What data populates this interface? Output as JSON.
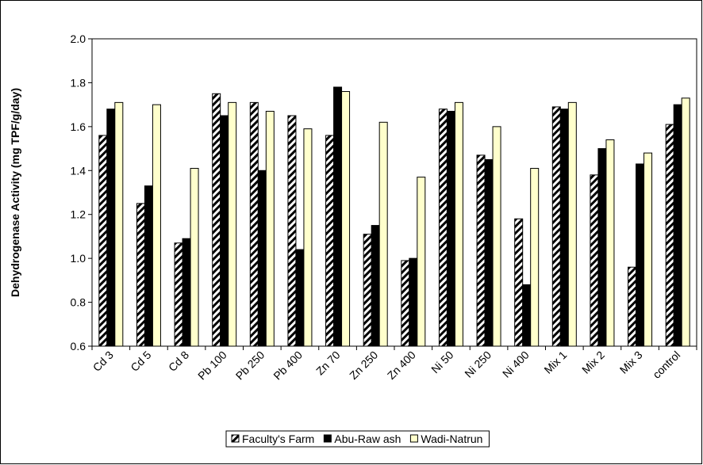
{
  "chart_data": {
    "type": "bar",
    "ylabel": "Dehydrogenase Activity (mg TPF/g/day)",
    "categories": [
      "Cd 3",
      "Cd 5",
      "Cd 8",
      "Pb 100",
      "Pb 250",
      "Pb 400",
      "Zn 70",
      "Zn 250",
      "Zn 400",
      "Ni 50",
      "Ni 250",
      "Ni 400",
      "Mix 1",
      "Mix 2",
      "Mix 3",
      "control"
    ],
    "series": [
      {
        "name": "Faculty's Farm",
        "color": "#000000",
        "pattern": "diagonal-hatch",
        "values": [
          1.56,
          1.25,
          1.07,
          1.75,
          1.71,
          1.65,
          1.56,
          1.11,
          0.99,
          1.68,
          1.47,
          1.18,
          1.69,
          1.38,
          0.96,
          1.61
        ]
      },
      {
        "name": "Abu-Raw ash",
        "color": "#000000",
        "values": [
          1.68,
          1.33,
          1.09,
          1.65,
          1.4,
          1.04,
          1.78,
          1.15,
          1.0,
          1.67,
          1.45,
          0.88,
          1.68,
          1.5,
          1.43,
          1.7
        ]
      },
      {
        "name": "Wadi-Natrun",
        "color": "#ffffcc",
        "values": [
          1.71,
          1.7,
          1.41,
          1.71,
          1.67,
          1.59,
          1.76,
          1.62,
          1.37,
          1.71,
          1.6,
          1.41,
          1.71,
          1.54,
          1.48,
          1.73
        ]
      }
    ],
    "ylim": [
      0.6,
      2.0
    ],
    "yticks": [
      0.6,
      0.8,
      {
        "value": 1.0,
        "label": "1.0"
      },
      1.2,
      1.4,
      1.6,
      1.8,
      {
        "value": 2.0,
        "label": "2.0"
      }
    ],
    "grid": false,
    "legend": "bottom"
  }
}
